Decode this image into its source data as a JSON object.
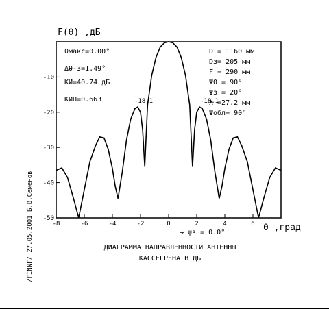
{
  "chart_data": {
    "type": "line",
    "ylabel": "F(θ) ,дБ",
    "xlabel": "θ ,град",
    "xlim": [
      -8,
      8
    ],
    "ylim": [
      -50,
      0
    ],
    "x_ticks": [
      -8,
      -6,
      -4,
      -2,
      0,
      2,
      4,
      6
    ],
    "y_ticks": [
      -10,
      -20,
      -30,
      -40,
      -50
    ],
    "series": [
      {
        "values_note": "",
        "x": [
          -8.0,
          -7.6,
          -7.2,
          -6.8,
          -6.4,
          -6.0,
          -5.6,
          -5.2,
          -4.9,
          -4.6,
          -4.3,
          -4.0,
          -3.8,
          -3.6,
          -3.3,
          -3.0,
          -2.7,
          -2.4,
          -2.2,
          -2.0,
          -1.85,
          -1.7,
          -1.5,
          -1.2,
          -0.9,
          -0.6,
          -0.3,
          0.0,
          0.3,
          0.6,
          0.9,
          1.2,
          1.5,
          1.7,
          1.85,
          2.0,
          2.2,
          2.4,
          2.7,
          3.0,
          3.3,
          3.6,
          3.8,
          4.0,
          4.3,
          4.6,
          4.9,
          5.2,
          5.6,
          6.0,
          6.4,
          6.8,
          7.2,
          7.6,
          8.0
        ],
        "y": [
          -36.5,
          -35.8,
          -38.5,
          -44.0,
          -50.0,
          -42.0,
          -34.0,
          -29.5,
          -27.0,
          -27.3,
          -30.5,
          -36.0,
          -41.0,
          -44.5,
          -37.0,
          -28.0,
          -22.0,
          -19.0,
          -18.5,
          -20.0,
          -25.0,
          -35.5,
          -18.0,
          -9.5,
          -4.5,
          -1.5,
          -0.3,
          0.0,
          -0.3,
          -1.5,
          -4.5,
          -9.5,
          -18.0,
          -35.5,
          -25.0,
          -20.0,
          -18.5,
          -19.0,
          -22.0,
          -28.0,
          -37.0,
          -44.5,
          -41.0,
          -36.0,
          -30.5,
          -27.3,
          -27.0,
          -29.5,
          -34.0,
          -42.0,
          -50.0,
          -44.0,
          -38.5,
          -35.8,
          -36.5
        ]
      }
    ],
    "annotations": {
      "sidelobe_left": "-18.1",
      "sidelobe_right": "-18.1"
    }
  },
  "params_left": [
    "θмакс=0.00°",
    "Δθ-3=1.49°",
    "КИ=40.74 дБ",
    "КИП=0.663"
  ],
  "params_right": [
    "D = 1160 мм",
    "Dз= 205 мм",
    "F = 290 мм",
    "Ψ0 = 90°",
    "Ψз = 20°",
    "λ =27.2 мм",
    "Ψобл= 90°"
  ],
  "psi_label": "→ ψв = 0.0°",
  "caption_line1": "ДИАГРАММА НАПРАВЛЕННОСТИ АНТЕННЫ",
  "caption_line2": "КАССЕГРЕНА В ДБ",
  "side_text": "/FINNF/  27.05.2001  Б.В.Семенов"
}
